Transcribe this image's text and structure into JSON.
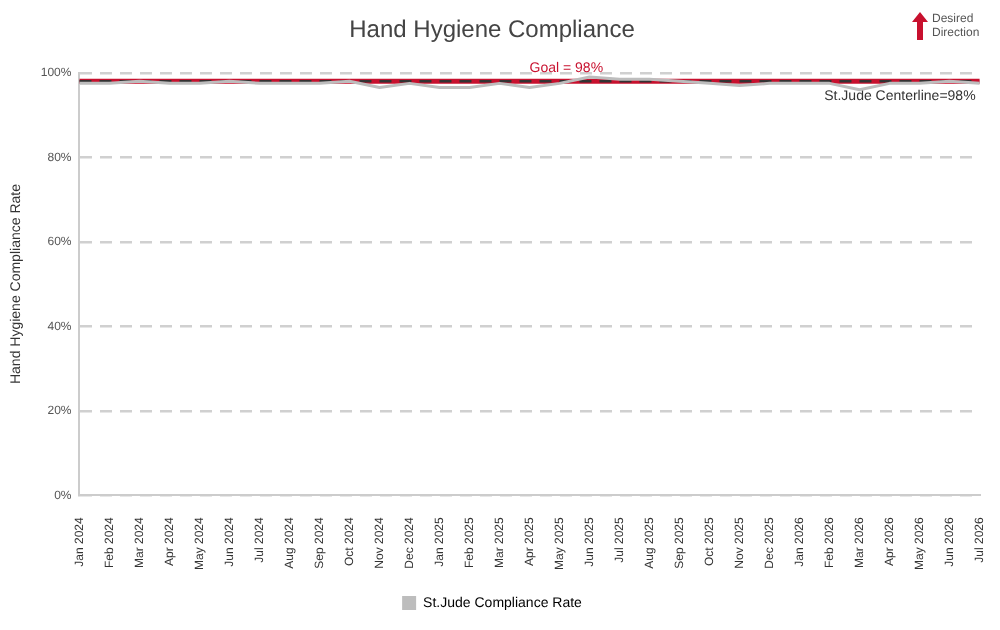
{
  "chart_data": {
    "type": "line",
    "title": "Hand Hygiene Compliance",
    "ylabel": "Hand Hygiene Compliance Rate",
    "categories": [
      "Jan 2024",
      "Feb 2024",
      "Mar 2024",
      "Apr 2024",
      "May 2024",
      "Jun 2024",
      "Jul 2024",
      "Aug 2024",
      "Sep 2024",
      "Oct 2024",
      "Nov 2024",
      "Dec 2024",
      "Jan 2025",
      "Feb 2025",
      "Mar 2025",
      "Apr 2025",
      "May 2025",
      "Jun 2025",
      "Jul 2025",
      "Aug 2025",
      "Sep 2025",
      "Oct 2025",
      "Nov 2025",
      "Dec 2025",
      "Jan 2026",
      "Feb 2026",
      "Mar 2026",
      "Apr 2026",
      "May 2026",
      "Jun 2026",
      "Jul 2026"
    ],
    "series": [
      {
        "name": "St.Jude Compliance Rate",
        "color": "#bdbdbd",
        "values": [
          97.5,
          97.5,
          98,
          97.5,
          97.5,
          98,
          97.5,
          97.5,
          97.5,
          98,
          96.5,
          97.5,
          96.5,
          96.5,
          97.5,
          96.5,
          97.5,
          99,
          98.5,
          98.5,
          98,
          97.5,
          97,
          97.5,
          97.5,
          97.5,
          96,
          97.5,
          97.5,
          98,
          97.5
        ]
      }
    ],
    "ylim": [
      0,
      100
    ],
    "yticks": [
      {
        "value": 0,
        "label": "0%"
      },
      {
        "value": 20,
        "label": "20%"
      },
      {
        "value": 40,
        "label": "40%"
      },
      {
        "value": 60,
        "label": "60%"
      },
      {
        "value": 80,
        "label": "80%"
      },
      {
        "value": 100,
        "label": "100%"
      }
    ],
    "grid": "y",
    "legend": "bottom",
    "marker": "none",
    "line_style": "solid",
    "ref_lines": [
      {
        "axis": "y",
        "value": 98,
        "label": "Goal = 98%",
        "color": "#c8102e",
        "line_style": "solid"
      },
      {
        "axis": "y",
        "value": 98,
        "label": "St.Jude Centerline=98%",
        "color": "#333333",
        "line_style": "dashed"
      }
    ],
    "annotations": [
      "Desired Direction"
    ]
  }
}
